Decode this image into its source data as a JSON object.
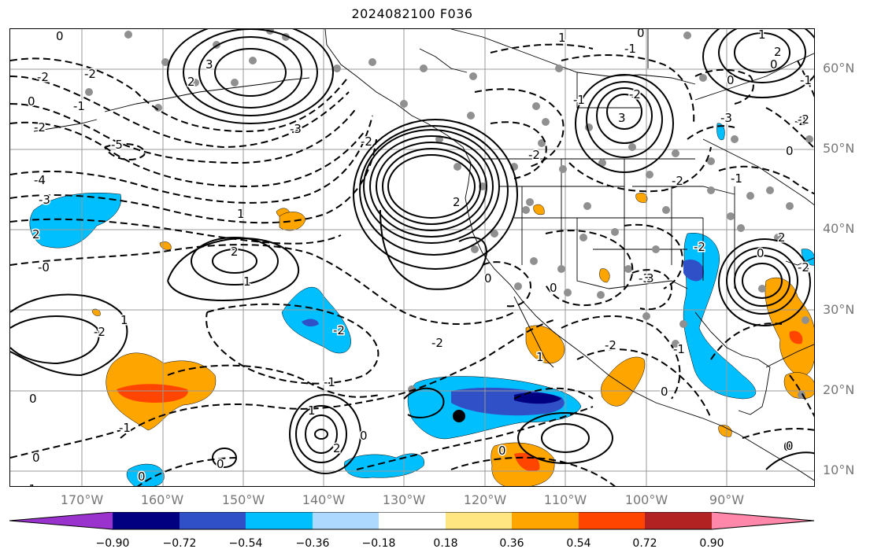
{
  "title": "2024082100 F036",
  "lat_labels": [
    "60°N",
    "50°N",
    "40°N",
    "30°N",
    "20°N",
    "10°N"
  ],
  "lon_labels": [
    "170°W",
    "160°W",
    "150°W",
    "140°W",
    "130°W",
    "120°W",
    "110°W",
    "100°W",
    "90°W"
  ],
  "colorbar": {
    "colors": [
      "#9a32cd",
      "#000080",
      "#3050c8",
      "#00bfff",
      "#add8ff",
      "#ffffff",
      "#ffe680",
      "#ffa500",
      "#ff4500",
      "#b22222",
      "#ff88aa"
    ],
    "tick_labels": [
      "−0.90",
      "−0.72",
      "−0.54",
      "−0.36",
      "−0.18",
      "0.18",
      "0.36",
      "0.54",
      "0.72",
      "0.90"
    ]
  },
  "contour_labels": [
    "0",
    "-2",
    "0",
    "-1",
    "-2",
    "3",
    "2",
    "-3",
    "-2",
    "-5",
    "-4",
    "-3",
    "2",
    "-0",
    "-2",
    "1",
    "2",
    "1",
    "-2",
    "-1",
    "0",
    "-2",
    "-1",
    "1",
    "-2",
    "0",
    "-1",
    "0",
    "2",
    "0",
    "1",
    "0",
    "1",
    "-2",
    "0",
    "0",
    "-3",
    "-2",
    "0",
    "3",
    "-2",
    "-2",
    "-2",
    "1",
    "-1",
    "0",
    "2",
    "0",
    "2",
    "0",
    "0",
    "1",
    "-1",
    "-2",
    "0",
    "0",
    "-2",
    "0",
    "0",
    "3",
    "2",
    "-3",
    "-2",
    "-1",
    "-1",
    "-1"
  ],
  "colors": {
    "solid_contour": "#000000",
    "dashed_contour": "#000000",
    "station_dot": "#909090",
    "grid": "#999999",
    "coast": "#000000"
  }
}
